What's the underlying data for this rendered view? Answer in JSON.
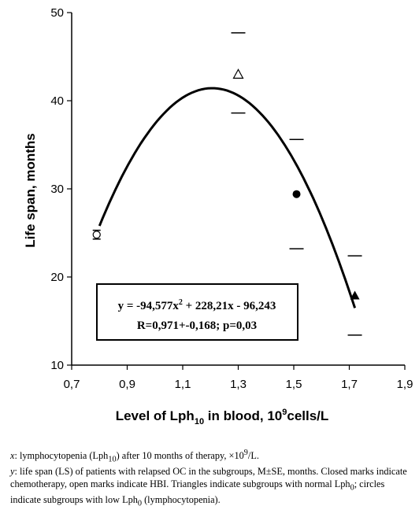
{
  "chart_data": {
    "type": "scatter",
    "title": "",
    "xlabel": "Level of Lph",
    "xlabel_sub": "10",
    "xlabel_rest": " in blood, 10",
    "xlabel_sup": "9",
    "xlabel_tail": "cells/L",
    "ylabel": "Life span, months",
    "xlim": [
      0.7,
      1.9
    ],
    "ylim": [
      10,
      50
    ],
    "xticks": [
      "0,7",
      "0,9",
      "1,1",
      "1,3",
      "1,5",
      "1,7",
      "1,9"
    ],
    "yticks": [
      "10",
      "20",
      "30",
      "40",
      "50"
    ],
    "grid": false,
    "series": [
      {
        "marker": "open-circle",
        "x": 0.79,
        "y": 24.8,
        "err_low": 24.3,
        "err_high": 25.3
      },
      {
        "marker": "open-triangle",
        "x": 1.3,
        "y": 43.0,
        "err_low": 38.6,
        "err_high": 47.7
      },
      {
        "marker": "filled-circle",
        "x": 1.51,
        "y": 29.4,
        "err_low": 23.2,
        "err_high": 35.6
      },
      {
        "marker": "filled-triangle",
        "x": 1.72,
        "y": 17.9,
        "err_low": 13.4,
        "err_high": 22.4
      }
    ],
    "trendline": {
      "a": -94.577,
      "b": 228.21,
      "c": -96.243,
      "x_from": 0.8,
      "x_to": 1.72
    },
    "annotation": {
      "eq_part1": "y = -94,577x",
      "eq_sup": "2",
      "eq_part2": " + 228,21x - 96,243",
      "stats": "R=0,971+-0,168; p=0,03"
    }
  },
  "caption": {
    "line1_var": "x",
    "line1_a": ": lymphocytopenia (Lph",
    "line1_sub": "10",
    "line1_b": ") after 10 months of therapy, ×10",
    "line1_sup": "9",
    "line1_c": "/L.",
    "line2_var": "y",
    "line2_text": ": life span (LS) of patients with relapsed OC in the subgroups, M±SE, months.",
    "line3_text": "Closed marks indicate chemotherapy, open marks indicate HBI. Triangles indicate subgroups with normal Lph",
    "line3_sub": "0",
    "line3_b": "; circles indicate subgroups with low Lph",
    "line3_sub2": "0",
    "line3_c": " (lymphocytopenia)."
  }
}
